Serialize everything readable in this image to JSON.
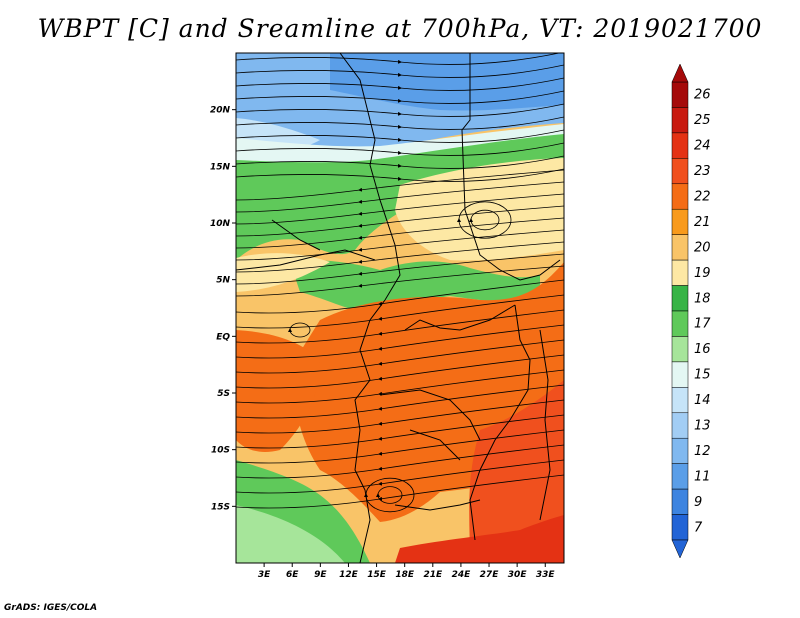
{
  "title": "WBPT [C] and Sreamline at 700hPa, VT: 2019021700",
  "credit": "GrADS: IGES/COLA",
  "map": {
    "lon_range": [
      0,
      35
    ],
    "lat_range": [
      -20,
      25
    ],
    "lat_ticks": [
      {
        "lat": 20,
        "label": "20N"
      },
      {
        "lat": 15,
        "label": "15N"
      },
      {
        "lat": 10,
        "label": "10N"
      },
      {
        "lat": 5,
        "label": "5N"
      },
      {
        "lat": 0,
        "label": "EQ"
      },
      {
        "lat": -5,
        "label": "5S"
      },
      {
        "lat": -10,
        "label": "10S"
      },
      {
        "lat": -15,
        "label": "15S"
      }
    ],
    "lon_ticks": [
      {
        "lon": 3,
        "label": "3E"
      },
      {
        "lon": 6,
        "label": "6E"
      },
      {
        "lon": 9,
        "label": "9E"
      },
      {
        "lon": 12,
        "label": "12E"
      },
      {
        "lon": 15,
        "label": "15E"
      },
      {
        "lon": 18,
        "label": "18E"
      },
      {
        "lon": 21,
        "label": "21E"
      },
      {
        "lon": 24,
        "label": "24E"
      },
      {
        "lon": 27,
        "label": "27E"
      },
      {
        "lon": 30,
        "label": "30E"
      },
      {
        "lon": 33,
        "label": "33E"
      }
    ]
  },
  "colorbar": {
    "levels": [
      {
        "label": "26",
        "color": "#a50a0a"
      },
      {
        "label": "25",
        "color": "#c81a10"
      },
      {
        "label": "24",
        "color": "#e43214"
      },
      {
        "label": "23",
        "color": "#f0501e"
      },
      {
        "label": "22",
        "color": "#f46d16"
      },
      {
        "label": "21",
        "color": "#f89a1c"
      },
      {
        "label": "20",
        "color": "#f9c468"
      },
      {
        "label": "19",
        "color": "#fde8a4"
      },
      {
        "label": "18",
        "color": "#37b446"
      },
      {
        "label": "17",
        "color": "#5fc95a"
      },
      {
        "label": "16",
        "color": "#a6e59a"
      },
      {
        "label": "15",
        "color": "#e4f7f3"
      },
      {
        "label": "14",
        "color": "#c6e4f8"
      },
      {
        "label": "13",
        "color": "#a2cdf4"
      },
      {
        "label": "12",
        "color": "#80b8ef"
      },
      {
        "label": "11",
        "color": "#5a9ee8"
      },
      {
        "label": "9",
        "color": "#3d84e0"
      },
      {
        "label": "7",
        "color": "#2264d6"
      }
    ]
  }
}
